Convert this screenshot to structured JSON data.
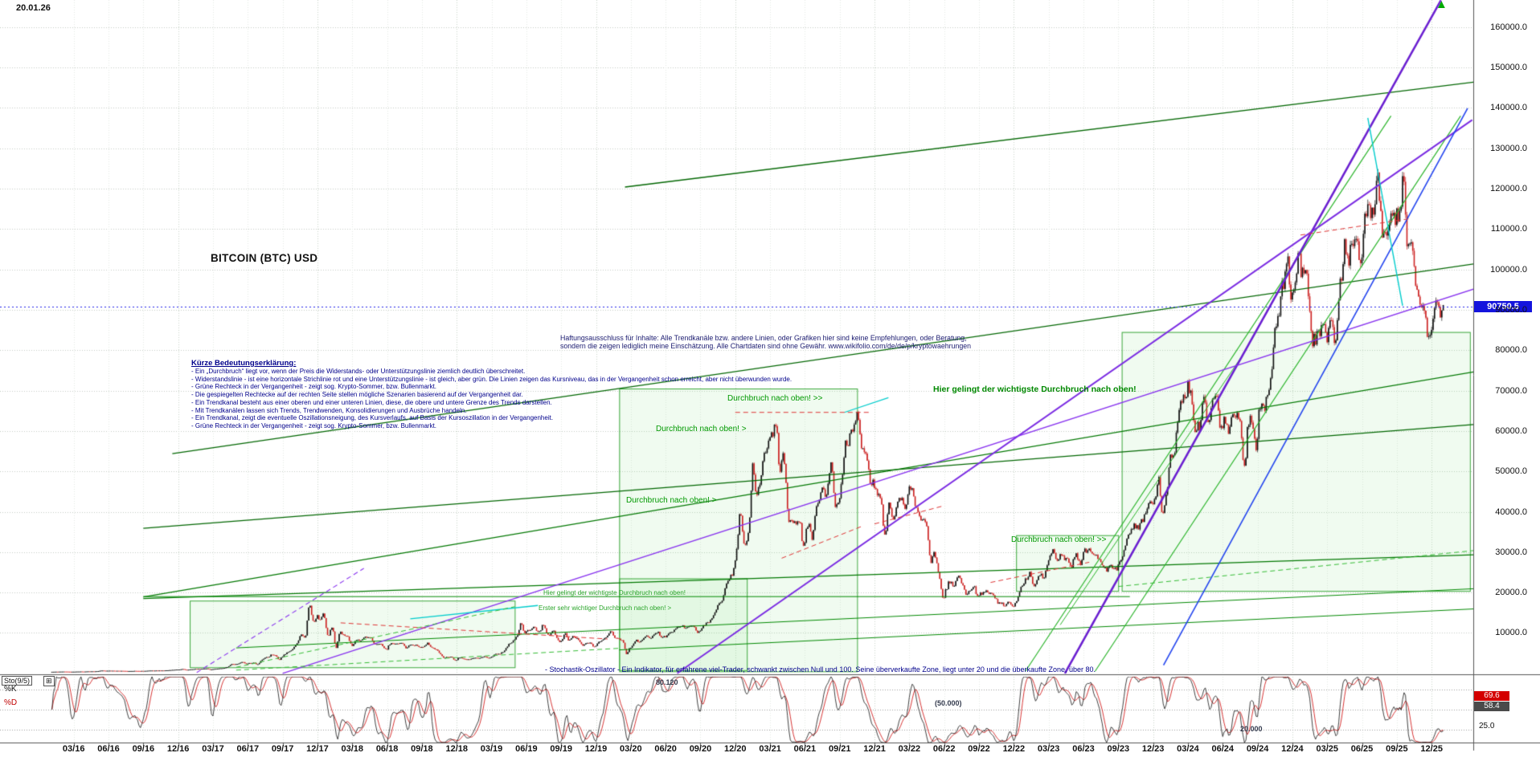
{
  "meta": {
    "date_label": "20.01.26",
    "title": "BITCOIN (BTC) USD"
  },
  "icons": {
    "up_arrow": "▲",
    "plus_button": "⊞"
  },
  "colors": {
    "candle_up": "#111111",
    "candle_down": "#cc2222",
    "current_price_line": "#2020e8",
    "trend_green": "#006600",
    "trend_violet": "#7a2be2",
    "trend_blue": "#2244ee",
    "trend_cyan": "#00cccc",
    "resistance_red": "#dd3333",
    "box_green": "#3aa73a"
  },
  "price_axis": {
    "labels": [
      "160000.0",
      "150000.0",
      "140000.0",
      "130000.0",
      "120000.0",
      "110000.0",
      "100000.0",
      "90000.0",
      "80000.0",
      "70000.0",
      "60000.0",
      "50000.0",
      "40000.0",
      "30000.0",
      "20000.0",
      "10000.0"
    ],
    "current_price_label": "90750.5"
  },
  "x_axis": {
    "labels": [
      "03/16",
      "06/16",
      "09/16",
      "12/16",
      "03/17",
      "06/17",
      "09/17",
      "12/17",
      "03/18",
      "06/18",
      "09/18",
      "12/18",
      "03/19",
      "06/19",
      "09/19",
      "12/19",
      "03/20",
      "06/20",
      "09/20",
      "12/20",
      "03/21",
      "06/21",
      "09/21",
      "12/21",
      "03/22",
      "06/22",
      "09/22",
      "12/22",
      "03/23",
      "06/23",
      "09/23",
      "12/23",
      "03/24",
      "06/24",
      "09/24",
      "12/24",
      "03/25",
      "06/25",
      "09/25",
      "12/25"
    ]
  },
  "disclaimer": {
    "line1": "Haftungsausschluss für Inhalte: Alle Trendkanäle bzw. andere Linien, oder Grafiken hier sind keine Empfehlungen, oder Beratung,",
    "line2": "sondern die zeigen lediglich meine Einschätzung. Alle Chartdaten sind ohne Gewähr. www.wikifolio.com/de/de/p/kryptowaehrungen"
  },
  "legend": {
    "title": "Kürze Bedeutungserklärung:",
    "lines": [
      "- Ein „Durchbruch“ liegt vor, wenn der Preis die Widerstands- oder Unterstützungslinie ziemlich deutlich überschreitet.",
      "- Widerstandslinie - ist eine horizontale Strichlinie rot und eine Unterstützungslinie - ist gleich, aber grün. Die Linien zeigen das Kursniveau, das in der Vergangenheit schon erreicht, aber nicht überwunden wurde.",
      "- Grüne Rechteck in der Vergangenheit - zeigt sog. Krypto-Sommer, bzw. Bullenmarkt.",
      "- Die gespiegelten Rechtecke auf der rechten Seite stellen mögliche Szenarien basierend auf der Vergangenheit dar.",
      "- Ein Trendkanal besteht aus einer oberen und einer unteren Linien, diese, die obere und untere Grenze des Trends darstellen.",
      "- Mit Trendkanälen lassen sich Trends, Trendwenden, Konsolidierungen und Ausbrüche handeln.",
      "- Ein Trendkanal, zeigt die eventuelle Oszillationsneigung, des Kursverlaufs, auf Basis der Kursoszillation in der Vergangenheit.",
      "- Grüne Rechteck in der Vergangenheit - zeigt sog. Krypto-Sommer, bzw. Bullenmarkt."
    ]
  },
  "annotations": [
    {
      "id": "db1",
      "text": "Durchbruch nach oben! >>",
      "style": "green"
    },
    {
      "id": "db2",
      "text": "Durchbruch nach oben! >",
      "style": "green"
    },
    {
      "id": "db3",
      "text": "Durchbruch nach oben! >",
      "style": "green"
    },
    {
      "id": "db4",
      "text": "Durchbruch nach oben! >>",
      "style": "green"
    },
    {
      "id": "big",
      "text": "Hier gelingt der wichtigste Durchbruch nach oben!",
      "style": "green-b"
    },
    {
      "id": "small1",
      "text": "Hier gelingt der wichtigste Durchbruch nach oben!",
      "style": "green-s"
    },
    {
      "id": "small2",
      "text": "Erster sehr wichtiger Durchbruch nach oben! >",
      "style": "green-s"
    },
    {
      "id": "stoch",
      "text": "- Stochastik-Oszillator - Ein Indikator, für erfahrene viel-Trader, schwankt zwischen Null und 100. Seine überverkaufte Zone, liegt unter 20 und die überkaufte Zone, über 80.",
      "style": "navy"
    },
    {
      "id": "lvl80",
      "text": "80.120",
      "style": "note"
    },
    {
      "id": "lvl50",
      "text": "(50.000)",
      "style": "note"
    },
    {
      "id": "lvl20",
      "text": "20.000",
      "style": "note"
    }
  ],
  "oscillator": {
    "name_label": "Sto(9/5)",
    "k_label": "%K",
    "d_label": "%D",
    "k_value": "69.6",
    "d_value": "58.4",
    "scale_low": "25.0",
    "overbought": 80,
    "oversold": 20,
    "midline": 50
  },
  "chart_data": {
    "type": "candlestick",
    "title": "BITCOIN (BTC) USD",
    "x_unit": "month",
    "x_start": "2016-01",
    "x_end": "2026-01",
    "ylim": [
      0,
      165000
    ],
    "y_ticks": [
      10000,
      20000,
      30000,
      40000,
      50000,
      60000,
      70000,
      80000,
      90000,
      100000,
      110000,
      120000,
      130000,
      140000,
      150000,
      160000
    ],
    "current_price": 90750.5,
    "monthly_close": [
      370,
      437,
      416,
      448,
      531,
      673,
      624,
      575,
      609,
      700,
      745,
      963,
      970,
      1180,
      1080,
      1350,
      2300,
      2480,
      2870,
      4700,
      4360,
      6450,
      9900,
      14100,
      10200,
      10300,
      6900,
      9240,
      7490,
      6390,
      7730,
      7010,
      6620,
      6300,
      4020,
      3740,
      3460,
      3850,
      4100,
      5320,
      8560,
      10800,
      10090,
      9600,
      8290,
      9150,
      7560,
      7190,
      9350,
      8550,
      6440,
      8630,
      9450,
      9140,
      11350,
      11650,
      10780,
      13800,
      19700,
      29000,
      33100,
      45200,
      58800,
      57750,
      37330,
      35040,
      41500,
      47100,
      43800,
      61300,
      57000,
      46200,
      38480,
      43190,
      45540,
      37650,
      31790,
      19985,
      23300,
      20050,
      19430,
      20490,
      17160,
      16540,
      23130,
      23140,
      28480,
      29250,
      27220,
      30470,
      29230,
      25930,
      26970,
      34660,
      37720,
      42270,
      42580,
      61200,
      71330,
      60640,
      67540,
      62680,
      64630,
      58970,
      63330,
      70220,
      96450,
      93430,
      102400,
      84350,
      82550,
      94180,
      104600,
      107600,
      115800,
      108240,
      114060,
      110100,
      91500,
      87500,
      90750
    ],
    "monthly_high": [
      400,
      450,
      440,
      470,
      550,
      780,
      700,
      630,
      630,
      740,
      755,
      980,
      1150,
      1230,
      1290,
      1350,
      2780,
      2980,
      2930,
      4980,
      4980,
      6470,
      11400,
      19800,
      17200,
      11790,
      11700,
      9760,
      9990,
      7750,
      8500,
      7770,
      7410,
      7680,
      6540,
      4300,
      4000,
      4190,
      4290,
      5600,
      9070,
      13900,
      13130,
      12320,
      10950,
      10540,
      9500,
      7850,
      9570,
      10500,
      9180,
      9460,
      10070,
      10380,
      11450,
      12470,
      12050,
      14100,
      19900,
      29300,
      42000,
      58350,
      61800,
      64800,
      59500,
      41300,
      42200,
      50500,
      52920,
      66900,
      69000,
      59100,
      47980,
      45820,
      48240,
      47450,
      40000,
      31970,
      24670,
      25200,
      22800,
      20980,
      21480,
      18350,
      23960,
      25250,
      29180,
      31050,
      29870,
      31430,
      31800,
      30180,
      27480,
      35150,
      38420,
      44700,
      48970,
      63930,
      73800,
      72800,
      72000,
      71950,
      70000,
      65600,
      66500,
      73600,
      99800,
      108350,
      109350,
      102500,
      95000,
      95750,
      112000,
      110530,
      123200,
      124500,
      117900,
      126200,
      111000,
      95000,
      95000
    ],
    "monthly_low": [
      350,
      365,
      385,
      415,
      440,
      520,
      590,
      540,
      570,
      600,
      680,
      740,
      750,
      920,
      890,
      1070,
      1240,
      2100,
      1830,
      2650,
      2950,
      4150,
      5870,
      10700,
      9000,
      6000,
      6430,
      6430,
      7040,
      5780,
      6070,
      5880,
      6160,
      6200,
      3650,
      3120,
      3350,
      3350,
      3670,
      4030,
      5270,
      7430,
      9080,
      9320,
      7700,
      7290,
      6520,
      6430,
      6850,
      8400,
      3850,
      6150,
      8100,
      8830,
      8900,
      10550,
      9820,
      10370,
      13200,
      17600,
      28130,
      32330,
      45000,
      46930,
      30000,
      28800,
      29300,
      37300,
      39600,
      43300,
      53300,
      42000,
      32950,
      34320,
      37160,
      37580,
      26700,
      17600,
      18780,
      19520,
      18125,
      18190,
      15480,
      16260,
      16490,
      21350,
      19550,
      27050,
      25800,
      24750,
      28860,
      25350,
      24900,
      26520,
      34080,
      37610,
      38500,
      38500,
      60770,
      56500,
      56550,
      58400,
      53500,
      49050,
      52550,
      58900,
      66800,
      90500,
      89160,
      78200,
      76600,
      74500,
      93350,
      98200,
      105100,
      107250,
      107300,
      103500,
      89000,
      80000,
      86000
    ],
    "oscillator": {
      "type": "stochastic",
      "params": "9/5",
      "range": [
        0,
        100
      ],
      "k_last": 69.6,
      "d_last": 58.4,
      "overbought": 80,
      "oversold": 20
    },
    "overlays": {
      "trendlines": [
        {
          "m1": 49.5,
          "p1": 120400,
          "m2": 123,
          "p2": 146500,
          "c": "#006600",
          "w": 1.4,
          "d": 0
        },
        {
          "m1": 10.5,
          "p1": 54400,
          "m2": 123,
          "p2": 101500,
          "c": "#006600",
          "w": 1.3,
          "d": 0
        },
        {
          "m1": 8,
          "p1": 35900,
          "m2": 123,
          "p2": 61700,
          "c": "#006600",
          "w": 1.2,
          "d": 0
        },
        {
          "m1": 8,
          "p1": 18900,
          "m2": 123,
          "p2": 74800,
          "c": "#007700",
          "w": 1.2,
          "d": 0
        },
        {
          "m1": 8,
          "p1": 18500,
          "m2": 123,
          "p2": 29400,
          "c": "#007700",
          "w": 1.2,
          "d": 0
        },
        {
          "m1": 16,
          "p1": 6300,
          "m2": 123,
          "p2": 21000,
          "c": "#008800",
          "w": 1,
          "d": 0
        },
        {
          "m1": 49,
          "p1": 5800,
          "m2": 123,
          "p2": 16000,
          "c": "#008800",
          "w": 1,
          "d": 0
        },
        {
          "m1": 8,
          "p1": 19000,
          "m2": 93,
          "p2": 19000,
          "c": "#008800",
          "w": 1,
          "d": 0
        },
        {
          "m1": 87,
          "p1": 12000,
          "m2": 103,
          "p2": 80000,
          "c": "#2ab42a",
          "w": 1,
          "d": 0
        },
        {
          "m1": 84,
          "p1": 500,
          "m2": 115.5,
          "p2": 138000,
          "c": "#2ab42a",
          "w": 1.2,
          "d": 0
        },
        {
          "m1": 90,
          "p1": 500,
          "m2": 121.5,
          "p2": 138000,
          "c": "#2ab42a",
          "w": 1.2,
          "d": 0
        },
        {
          "m1": 87.4,
          "p1": 0,
          "m2": 119.8,
          "p2": 166600,
          "c": "#6a1fd0",
          "w": 2.6,
          "d": 0
        },
        {
          "m1": 54,
          "p1": 0,
          "m2": 122.5,
          "p2": 137000,
          "c": "#7a2be2",
          "w": 2,
          "d": 0
        },
        {
          "m1": 20,
          "p1": 0,
          "m2": 123,
          "p2": 95500,
          "c": "#8833ee",
          "w": 1.4,
          "d": 0
        },
        {
          "m1": 12.6,
          "p1": 200,
          "m2": 27,
          "p2": 26000,
          "c": "#8833ee",
          "w": 1.1,
          "d": 1
        },
        {
          "m1": 95.9,
          "p1": 2000,
          "m2": 122.1,
          "p2": 139900,
          "c": "#2244ee",
          "w": 1.6,
          "d": 0
        },
        {
          "m1": 31,
          "p1": 13500,
          "m2": 42,
          "p2": 16800,
          "c": "#00cccc",
          "w": 1.4,
          "d": 0
        },
        {
          "m1": 113.5,
          "p1": 137500,
          "m2": 116.5,
          "p2": 91000,
          "c": "#00cccc",
          "w": 1.4,
          "d": 0
        },
        {
          "m1": 68.4,
          "p1": 64600,
          "m2": 72.2,
          "p2": 68250,
          "c": "#00cccc",
          "w": 1.2,
          "d": 0
        },
        {
          "m1": 59,
          "p1": 64600,
          "m2": 70.5,
          "p2": 64600,
          "c": "#dd3333",
          "w": 1,
          "d": 1
        },
        {
          "m1": 63,
          "p1": 28500,
          "m2": 70,
          "p2": 36500,
          "c": "#dd3333",
          "w": 1,
          "d": 1
        },
        {
          "m1": 71,
          "p1": 37000,
          "m2": 77,
          "p2": 41500,
          "c": "#dd3333",
          "w": 1,
          "d": 1
        },
        {
          "m1": 81,
          "p1": 22500,
          "m2": 89.5,
          "p2": 27500,
          "c": "#dd3333",
          "w": 1,
          "d": 1
        },
        {
          "m1": 107.7,
          "p1": 108500,
          "m2": 117,
          "p2": 112500,
          "c": "#dd3333",
          "w": 1,
          "d": 1
        },
        {
          "m1": 25,
          "p1": 12500,
          "m2": 48,
          "p2": 8500,
          "c": "#dd3333",
          "w": 1,
          "d": 1
        },
        {
          "m1": 16,
          "p1": 1500,
          "m2": 40,
          "p2": 16500,
          "c": "#33bb33",
          "w": 1,
          "d": 1
        },
        {
          "m1": 16,
          "p1": 800,
          "m2": 49,
          "p2": 6200,
          "c": "#33bb33",
          "w": 1,
          "d": 1
        },
        {
          "m1": 92,
          "p1": 21500,
          "m2": 123,
          "p2": 30500,
          "c": "#33bb33",
          "w": 1,
          "d": 1
        }
      ],
      "boxes": [
        {
          "m1": 12,
          "p1": 1500,
          "m2": 40,
          "p2": 18000
        },
        {
          "m1": 49,
          "p1": 500,
          "m2": 69.5,
          "p2": 70500
        },
        {
          "m1": 49,
          "p1": 800,
          "m2": 60,
          "p2": 23500
        },
        {
          "m1": 92.3,
          "p1": 20400,
          "m2": 122.3,
          "p2": 84500
        },
        {
          "m1": 83.2,
          "p1": 20400,
          "m2": 92,
          "p2": 34200
        }
      ]
    }
  }
}
